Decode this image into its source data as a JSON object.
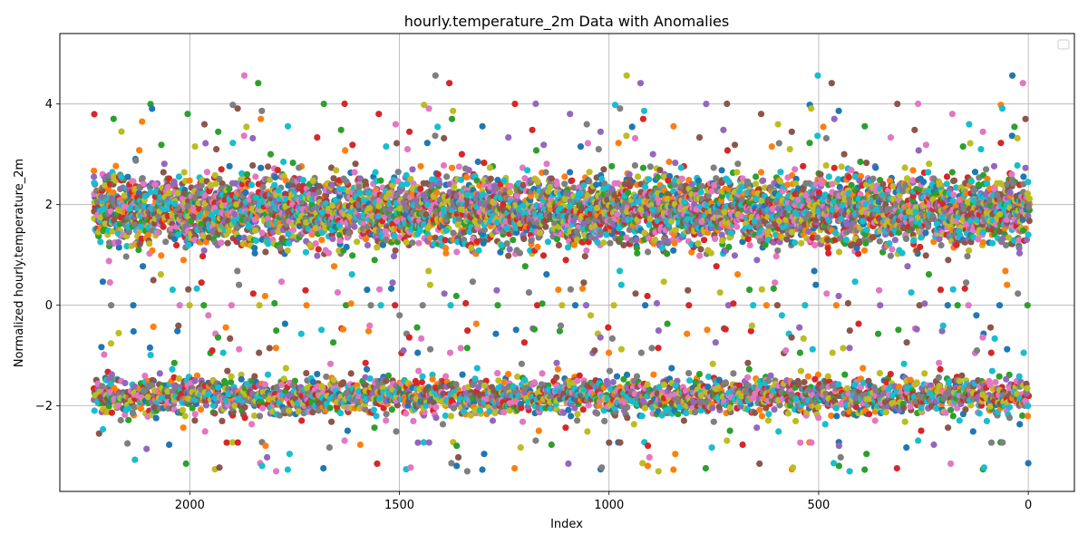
{
  "chart_data": {
    "type": "scatter",
    "title": "hourly.temperature_2m Data with Anomalies",
    "xlabel": "Index",
    "ylabel": "Normalized hourly.temperature_2m",
    "xlim": [
      2310,
      -110
    ],
    "ylim": [
      -3.7,
      5.4
    ],
    "x_inverted": true,
    "grid": true,
    "legend": "top-right",
    "x_ticks": [
      {
        "value": 2000,
        "label": "2000"
      },
      {
        "value": 1500,
        "label": "1500"
      },
      {
        "value": 1000,
        "label": "1000"
      },
      {
        "value": 500,
        "label": "500"
      },
      {
        "value": 0,
        "label": "0"
      }
    ],
    "y_ticks": [
      {
        "value": -2,
        "label": "−2"
      },
      {
        "value": 0,
        "label": "0"
      },
      {
        "value": 2,
        "label": "2"
      },
      {
        "value": 4,
        "label": "4"
      }
    ],
    "series_colors": [
      "#1f77b4",
      "#ff7f0e",
      "#2ca02c",
      "#d62728",
      "#9467bd",
      "#8c564b",
      "#e377c2",
      "#7f7f7f",
      "#bcbd22",
      "#17becf"
    ],
    "series_count": 10,
    "x_range": [
      0,
      2225
    ],
    "clusters": {
      "upper": {
        "center": 1.9,
        "typical_range": [
          0.3,
          3.6
        ],
        "extremes": [
          0.0,
          5.0
        ]
      },
      "lower": {
        "center": -1.8,
        "typical_range": [
          -2.7,
          -1.1
        ],
        "extremes": [
          -3.3,
          -0.2
        ]
      }
    }
  }
}
